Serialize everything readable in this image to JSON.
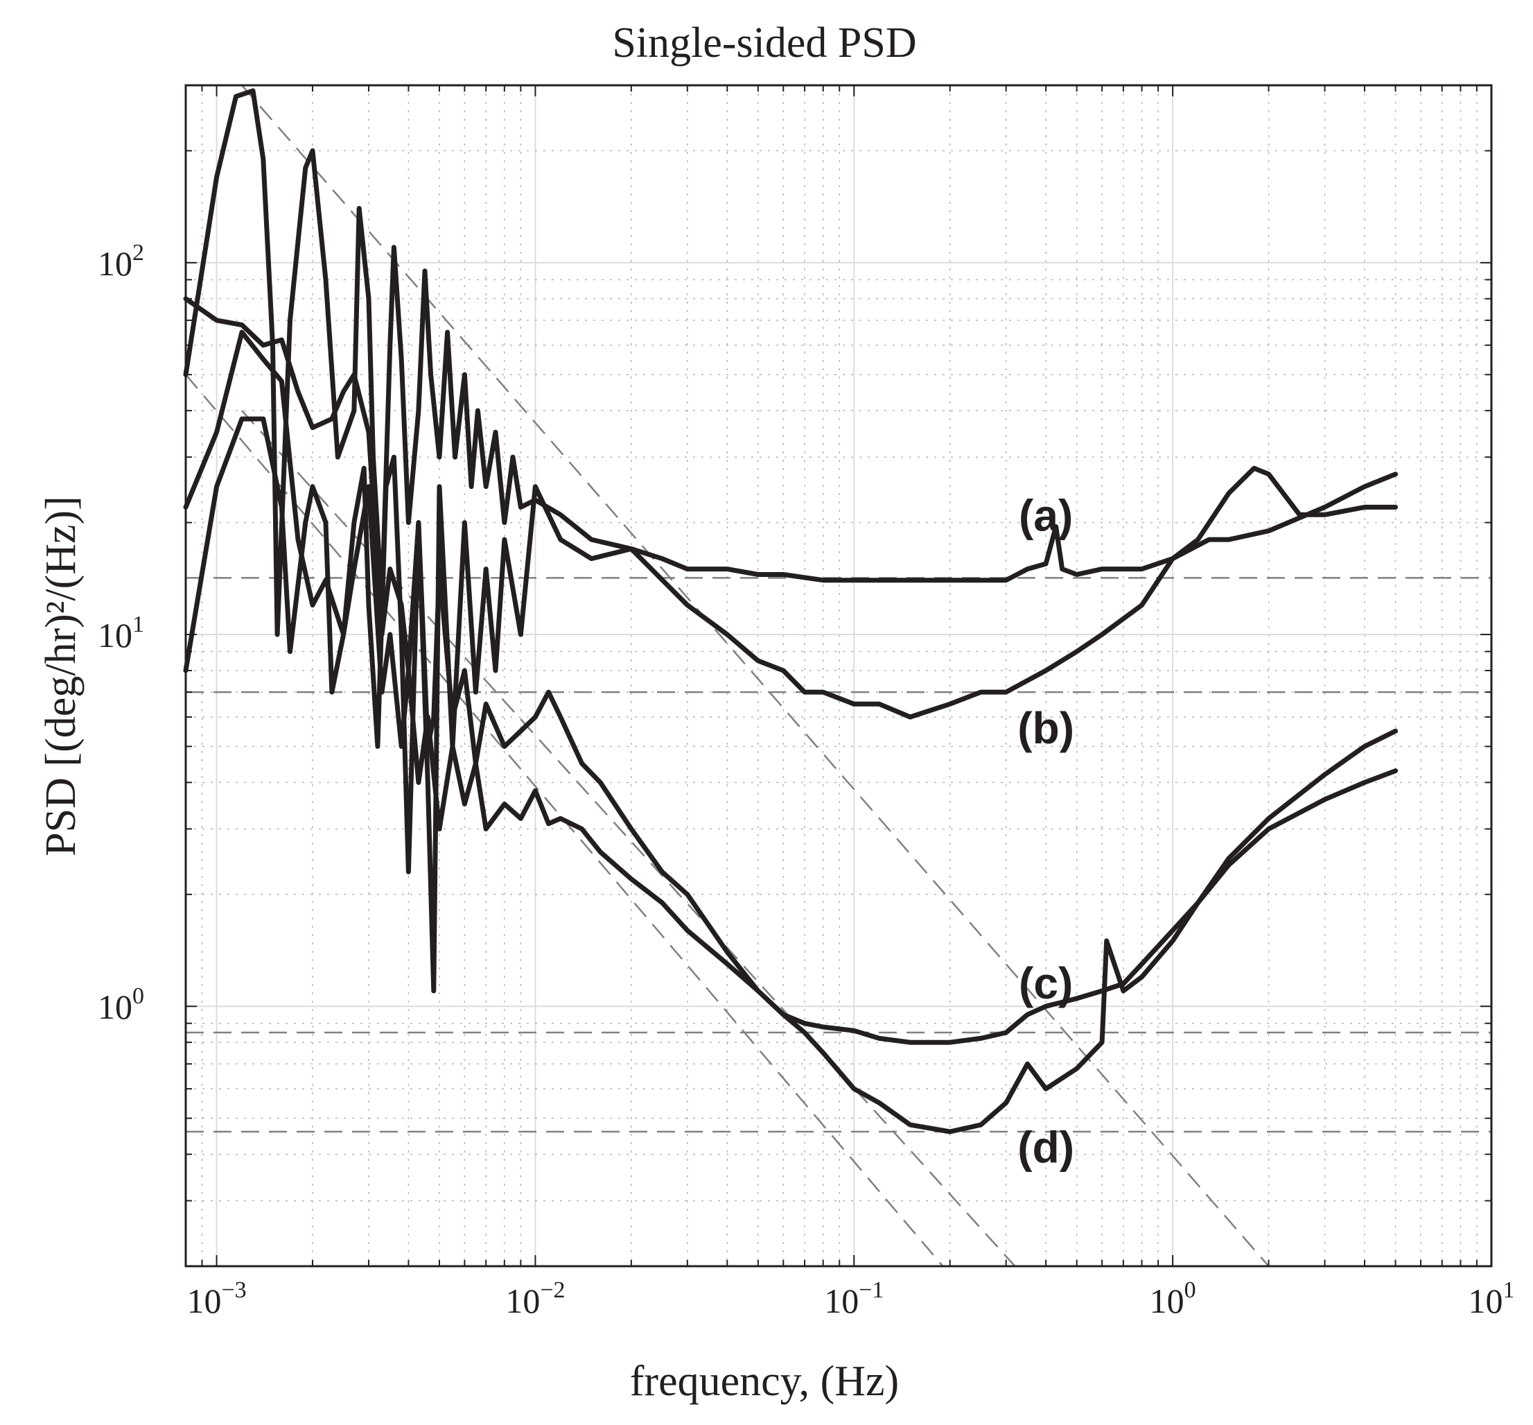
{
  "chart_data": {
    "type": "line",
    "title": "Single-sided PSD",
    "xlabel": "frequency, (Hz)",
    "ylabel": "PSD [(deg/hr)²/(Hz)]",
    "xscale": "log",
    "yscale": "log",
    "xlim": [
      0.0008,
      10
    ],
    "ylim": [
      0.2,
      300
    ],
    "grid": true,
    "minor_grid": true,
    "x_ticks": [
      {
        "value": 0.001,
        "base": "10",
        "exp": "−3"
      },
      {
        "value": 0.01,
        "base": "10",
        "exp": "−2"
      },
      {
        "value": 0.1,
        "base": "10",
        "exp": "−1"
      },
      {
        "value": 1,
        "base": "10",
        "exp": "0"
      },
      {
        "value": 10,
        "base": "10",
        "exp": "1"
      }
    ],
    "y_ticks": [
      {
        "value": 1,
        "base": "10",
        "exp": "0"
      },
      {
        "value": 10,
        "base": "10",
        "exp": "1"
      },
      {
        "value": 100,
        "base": "10",
        "exp": "2"
      }
    ],
    "series": [
      {
        "name": "(a)",
        "label_at": [
          0.4,
          19.0
        ],
        "points": [
          [
            0.0008,
            50
          ],
          [
            0.001,
            170
          ],
          [
            0.00115,
            280
          ],
          [
            0.0013,
            290
          ],
          [
            0.0014,
            190
          ],
          [
            0.0015,
            60
          ],
          [
            0.00155,
            10
          ],
          [
            0.0017,
            70
          ],
          [
            0.0019,
            180
          ],
          [
            0.002,
            200
          ],
          [
            0.0022,
            90
          ],
          [
            0.0024,
            30
          ],
          [
            0.0027,
            40
          ],
          [
            0.0028,
            140
          ],
          [
            0.003,
            80
          ],
          [
            0.0031,
            30
          ],
          [
            0.0033,
            12
          ],
          [
            0.0035,
            60
          ],
          [
            0.0036,
            110
          ],
          [
            0.0038,
            55
          ],
          [
            0.004,
            20
          ],
          [
            0.0043,
            40
          ],
          [
            0.0045,
            95
          ],
          [
            0.0047,
            50
          ],
          [
            0.005,
            30
          ],
          [
            0.0053,
            65
          ],
          [
            0.0056,
            30
          ],
          [
            0.006,
            50
          ],
          [
            0.0063,
            25
          ],
          [
            0.0066,
            40
          ],
          [
            0.007,
            25
          ],
          [
            0.0075,
            35
          ],
          [
            0.008,
            20
          ],
          [
            0.0085,
            30
          ],
          [
            0.009,
            22
          ],
          [
            0.01,
            23
          ],
          [
            0.012,
            21
          ],
          [
            0.015,
            18
          ],
          [
            0.02,
            17
          ],
          [
            0.025,
            16
          ],
          [
            0.03,
            15
          ],
          [
            0.04,
            15
          ],
          [
            0.05,
            14.5
          ],
          [
            0.06,
            14.5
          ],
          [
            0.08,
            14
          ],
          [
            0.1,
            14
          ],
          [
            0.13,
            14
          ],
          [
            0.17,
            14
          ],
          [
            0.2,
            14
          ],
          [
            0.25,
            14
          ],
          [
            0.3,
            14
          ],
          [
            0.35,
            15
          ],
          [
            0.4,
            15.5
          ],
          [
            0.43,
            19.5
          ],
          [
            0.45,
            15
          ],
          [
            0.5,
            14.5
          ],
          [
            0.6,
            15
          ],
          [
            0.7,
            15
          ],
          [
            0.8,
            15
          ],
          [
            1.0,
            16
          ],
          [
            1.2,
            18
          ],
          [
            1.5,
            24
          ],
          [
            1.8,
            28
          ],
          [
            2.0,
            27
          ],
          [
            2.5,
            21
          ],
          [
            3,
            21
          ],
          [
            4,
            22
          ],
          [
            5,
            22
          ]
        ]
      },
      {
        "name": "(b)",
        "label_at": [
          0.4,
          5.1
        ],
        "points": [
          [
            0.0008,
            8
          ],
          [
            0.001,
            25
          ],
          [
            0.0012,
            38
          ],
          [
            0.0014,
            38
          ],
          [
            0.0016,
            22
          ],
          [
            0.0017,
            9
          ],
          [
            0.0019,
            20
          ],
          [
            0.002,
            25
          ],
          [
            0.0022,
            20
          ],
          [
            0.0023,
            7
          ],
          [
            0.0025,
            10
          ],
          [
            0.0027,
            20
          ],
          [
            0.0029,
            28
          ],
          [
            0.003,
            12
          ],
          [
            0.0032,
            5
          ],
          [
            0.0034,
            25
          ],
          [
            0.0036,
            30
          ],
          [
            0.0038,
            10
          ],
          [
            0.004,
            2.3
          ],
          [
            0.0043,
            20
          ],
          [
            0.0046,
            4
          ],
          [
            0.0048,
            1.1
          ],
          [
            0.005,
            25
          ],
          [
            0.0055,
            5
          ],
          [
            0.006,
            20
          ],
          [
            0.0065,
            7
          ],
          [
            0.007,
            15
          ],
          [
            0.0075,
            8
          ],
          [
            0.008,
            18
          ],
          [
            0.009,
            10
          ],
          [
            0.01,
            25
          ],
          [
            0.012,
            18
          ],
          [
            0.015,
            16
          ],
          [
            0.02,
            17
          ],
          [
            0.03,
            12
          ],
          [
            0.04,
            10
          ],
          [
            0.05,
            8.5
          ],
          [
            0.06,
            8
          ],
          [
            0.07,
            7
          ],
          [
            0.08,
            7
          ],
          [
            0.1,
            6.5
          ],
          [
            0.12,
            6.5
          ],
          [
            0.15,
            6
          ],
          [
            0.2,
            6.5
          ],
          [
            0.25,
            7
          ],
          [
            0.3,
            7
          ],
          [
            0.4,
            8
          ],
          [
            0.5,
            9
          ],
          [
            0.6,
            10
          ],
          [
            0.8,
            12
          ],
          [
            1.0,
            16
          ],
          [
            1.3,
            18
          ],
          [
            1.5,
            18
          ],
          [
            2,
            19
          ],
          [
            3,
            22
          ],
          [
            4,
            25
          ],
          [
            5,
            27
          ]
        ]
      },
      {
        "name": "(c)",
        "label_at": [
          0.4,
          1.05
        ],
        "points": [
          [
            0.0008,
            80
          ],
          [
            0.001,
            70
          ],
          [
            0.0012,
            68
          ],
          [
            0.0014,
            60
          ],
          [
            0.0016,
            62
          ],
          [
            0.0018,
            45
          ],
          [
            0.002,
            36
          ],
          [
            0.0023,
            38
          ],
          [
            0.0025,
            45
          ],
          [
            0.0027,
            50
          ],
          [
            0.003,
            35
          ],
          [
            0.0033,
            10
          ],
          [
            0.0035,
            15
          ],
          [
            0.0038,
            12
          ],
          [
            0.004,
            8
          ],
          [
            0.0043,
            20
          ],
          [
            0.0046,
            5
          ],
          [
            0.0048,
            6
          ],
          [
            0.005,
            15
          ],
          [
            0.0055,
            6
          ],
          [
            0.006,
            8
          ],
          [
            0.0065,
            4.5
          ],
          [
            0.007,
            6.5
          ],
          [
            0.008,
            5
          ],
          [
            0.009,
            5.5
          ],
          [
            0.01,
            6
          ],
          [
            0.011,
            7
          ],
          [
            0.012,
            6
          ],
          [
            0.014,
            4.5
          ],
          [
            0.016,
            4
          ],
          [
            0.02,
            3
          ],
          [
            0.025,
            2.3
          ],
          [
            0.03,
            2
          ],
          [
            0.04,
            1.4
          ],
          [
            0.05,
            1.1
          ],
          [
            0.06,
            0.95
          ],
          [
            0.07,
            0.9
          ],
          [
            0.08,
            0.88
          ],
          [
            0.1,
            0.86
          ],
          [
            0.12,
            0.82
          ],
          [
            0.15,
            0.8
          ],
          [
            0.2,
            0.8
          ],
          [
            0.25,
            0.82
          ],
          [
            0.3,
            0.85
          ],
          [
            0.35,
            0.95
          ],
          [
            0.4,
            1.0
          ],
          [
            0.5,
            1.05
          ],
          [
            0.6,
            1.1
          ],
          [
            0.7,
            1.15
          ],
          [
            0.8,
            1.3
          ],
          [
            1.0,
            1.6
          ],
          [
            1.2,
            1.9
          ],
          [
            1.5,
            2.4
          ],
          [
            2,
            3.0
          ],
          [
            3,
            3.6
          ],
          [
            4,
            4.0
          ],
          [
            5,
            4.3
          ]
        ]
      },
      {
        "name": "(d)",
        "label_at": [
          0.4,
          0.38
        ],
        "points": [
          [
            0.0008,
            22
          ],
          [
            0.001,
            35
          ],
          [
            0.0012,
            65
          ],
          [
            0.0014,
            55
          ],
          [
            0.0016,
            48
          ],
          [
            0.0018,
            18
          ],
          [
            0.002,
            12
          ],
          [
            0.0022,
            14
          ],
          [
            0.0025,
            10
          ],
          [
            0.0027,
            15
          ],
          [
            0.003,
            25
          ],
          [
            0.0033,
            7
          ],
          [
            0.0035,
            10
          ],
          [
            0.0038,
            5
          ],
          [
            0.004,
            8
          ],
          [
            0.0043,
            4
          ],
          [
            0.0046,
            6
          ],
          [
            0.005,
            3
          ],
          [
            0.0055,
            5
          ],
          [
            0.006,
            3.5
          ],
          [
            0.0065,
            4.5
          ],
          [
            0.007,
            3
          ],
          [
            0.008,
            3.5
          ],
          [
            0.009,
            3.2
          ],
          [
            0.01,
            3.8
          ],
          [
            0.011,
            3.1
          ],
          [
            0.012,
            3.2
          ],
          [
            0.014,
            3
          ],
          [
            0.016,
            2.6
          ],
          [
            0.02,
            2.2
          ],
          [
            0.025,
            1.9
          ],
          [
            0.03,
            1.6
          ],
          [
            0.04,
            1.3
          ],
          [
            0.05,
            1.1
          ],
          [
            0.06,
            0.95
          ],
          [
            0.07,
            0.85
          ],
          [
            0.08,
            0.75
          ],
          [
            0.1,
            0.6
          ],
          [
            0.12,
            0.55
          ],
          [
            0.15,
            0.48
          ],
          [
            0.2,
            0.46
          ],
          [
            0.25,
            0.48
          ],
          [
            0.3,
            0.55
          ],
          [
            0.35,
            0.7
          ],
          [
            0.4,
            0.6
          ],
          [
            0.5,
            0.68
          ],
          [
            0.6,
            0.8
          ],
          [
            0.62,
            1.5
          ],
          [
            0.7,
            1.1
          ],
          [
            0.8,
            1.2
          ],
          [
            1.0,
            1.5
          ],
          [
            1.2,
            1.9
          ],
          [
            1.5,
            2.5
          ],
          [
            2,
            3.2
          ],
          [
            3,
            4.2
          ],
          [
            4,
            5.0
          ],
          [
            5,
            5.5
          ]
        ]
      }
    ],
    "reference_lines": {
      "horizontal": [
        14.2,
        7.0,
        0.85,
        0.46
      ],
      "sloped": [
        {
          "from": [
            0.0012,
            300
          ],
          "to": [
            2.0,
            0.2
          ]
        },
        {
          "from": [
            0.0008,
            50
          ],
          "to": [
            0.19,
            0.2
          ]
        },
        {
          "from": [
            0.0012,
            40
          ],
          "to": [
            0.32,
            0.2
          ]
        }
      ]
    }
  }
}
